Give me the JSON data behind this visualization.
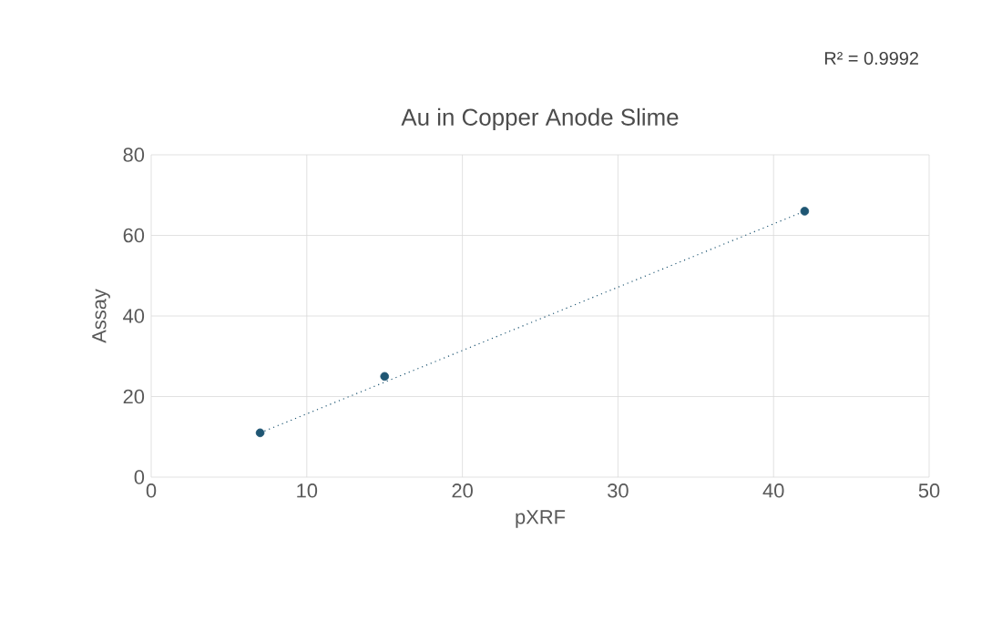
{
  "chart_data": {
    "type": "scatter",
    "title": "Au in Copper Anode Slime",
    "xlabel": "pXRF",
    "ylabel": "Assay",
    "annotations": [
      "R² = 0.9992"
    ],
    "xlim": [
      0,
      50
    ],
    "ylim": [
      0,
      80
    ],
    "xticks": [
      0,
      10,
      20,
      30,
      40,
      50
    ],
    "yticks": [
      0,
      20,
      40,
      60,
      80
    ],
    "grid": true,
    "series": [
      {
        "color": "#1f5673",
        "marker": "circle",
        "x": [
          7,
          15,
          42
        ],
        "values": [
          11,
          25,
          66
        ]
      },
      {
        "type": "line",
        "color": "#1f5673",
        "marker": "none",
        "line_style": "dotted",
        "x": [
          7,
          42
        ],
        "values": [
          11,
          66
        ]
      }
    ]
  }
}
